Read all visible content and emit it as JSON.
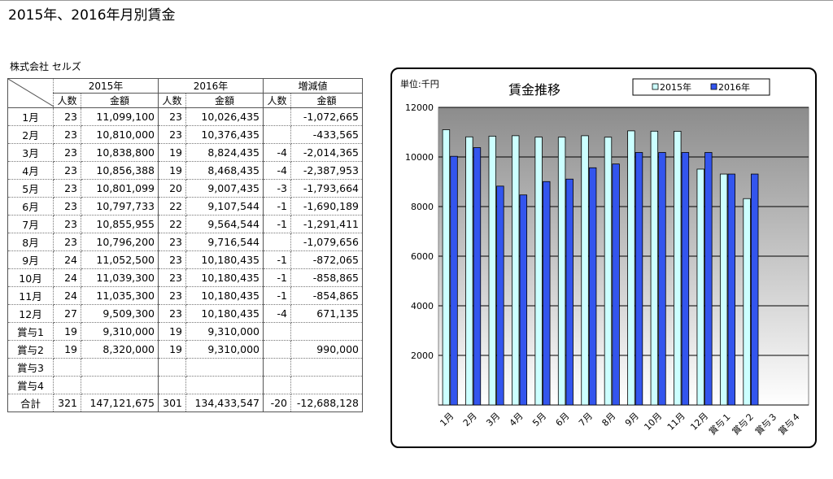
{
  "page_title": "2015年、2016年月別賃金",
  "company": "株式会社 セルズ",
  "table": {
    "group_headers": [
      "2015年",
      "2016年",
      "増減値"
    ],
    "sub_headers": [
      "人数",
      "金額",
      "人数",
      "金額",
      "人数",
      "金額"
    ],
    "rows": [
      {
        "month": "1月",
        "n15": "23",
        "a15": "11,099,100",
        "n16": "23",
        "a16": "10,026,435",
        "dn": "",
        "da": "-1,072,665"
      },
      {
        "month": "2月",
        "n15": "23",
        "a15": "10,810,000",
        "n16": "23",
        "a16": "10,376,435",
        "dn": "",
        "da": "-433,565"
      },
      {
        "month": "3月",
        "n15": "23",
        "a15": "10,838,800",
        "n16": "19",
        "a16": "8,824,435",
        "dn": "-4",
        "da": "-2,014,365"
      },
      {
        "month": "4月",
        "n15": "23",
        "a15": "10,856,388",
        "n16": "19",
        "a16": "8,468,435",
        "dn": "-4",
        "da": "-2,387,953"
      },
      {
        "month": "5月",
        "n15": "23",
        "a15": "10,801,099",
        "n16": "20",
        "a16": "9,007,435",
        "dn": "-3",
        "da": "-1,793,664"
      },
      {
        "month": "6月",
        "n15": "23",
        "a15": "10,797,733",
        "n16": "22",
        "a16": "9,107,544",
        "dn": "-1",
        "da": "-1,690,189"
      },
      {
        "month": "7月",
        "n15": "23",
        "a15": "10,855,955",
        "n16": "22",
        "a16": "9,564,544",
        "dn": "-1",
        "da": "-1,291,411"
      },
      {
        "month": "8月",
        "n15": "23",
        "a15": "10,796,200",
        "n16": "23",
        "a16": "9,716,544",
        "dn": "",
        "da": "-1,079,656"
      },
      {
        "month": "9月",
        "n15": "24",
        "a15": "11,052,500",
        "n16": "23",
        "a16": "10,180,435",
        "dn": "-1",
        "da": "-872,065"
      },
      {
        "month": "10月",
        "n15": "24",
        "a15": "11,039,300",
        "n16": "23",
        "a16": "10,180,435",
        "dn": "-1",
        "da": "-858,865"
      },
      {
        "month": "11月",
        "n15": "24",
        "a15": "11,035,300",
        "n16": "23",
        "a16": "10,180,435",
        "dn": "-1",
        "da": "-854,865"
      },
      {
        "month": "12月",
        "n15": "27",
        "a15": "9,509,300",
        "n16": "23",
        "a16": "10,180,435",
        "dn": "-4",
        "da": "671,135"
      },
      {
        "month": "賞与1",
        "n15": "19",
        "a15": "9,310,000",
        "n16": "19",
        "a16": "9,310,000",
        "dn": "",
        "da": ""
      },
      {
        "month": "賞与2",
        "n15": "19",
        "a15": "8,320,000",
        "n16": "19",
        "a16": "9,310,000",
        "dn": "",
        "da": "990,000"
      },
      {
        "month": "賞与3",
        "n15": "",
        "a15": "",
        "n16": "",
        "a16": "",
        "dn": "",
        "da": ""
      },
      {
        "month": "賞与4",
        "n15": "",
        "a15": "",
        "n16": "",
        "a16": "",
        "dn": "",
        "da": ""
      }
    ],
    "total": {
      "month": "合計",
      "n15": "321",
      "a15": "147,121,675",
      "n16": "301",
      "a16": "134,433,547",
      "dn": "-20",
      "da": "-12,688,128"
    }
  },
  "colors": {
    "series_2015": "#ccffff",
    "series_2016": "#3355ee",
    "bar_outline": "#000000",
    "plot_top": "#8c8c8c",
    "plot_bottom": "#ffffff"
  },
  "chart_data": {
    "type": "bar",
    "title": "賃金推移",
    "unit_label": "単位:千円",
    "categories": [
      "1月",
      "2月",
      "3月",
      "4月",
      "5月",
      "6月",
      "7月",
      "8月",
      "9月",
      "10月",
      "11月",
      "12月",
      "賞与１",
      "賞与２",
      "賞与３",
      "賞与４"
    ],
    "series": [
      {
        "name": "2015年",
        "values": [
          11099.1,
          10810.0,
          10838.8,
          10856.388,
          10801.099,
          10797.733,
          10855.955,
          10796.2,
          11052.5,
          11039.3,
          11035.3,
          9509.3,
          9310.0,
          8320.0,
          null,
          null
        ]
      },
      {
        "name": "2016年",
        "values": [
          10026.435,
          10376.435,
          8824.435,
          8468.435,
          9007.435,
          9107.544,
          9564.544,
          9716.544,
          10180.435,
          10180.435,
          10180.435,
          10180.435,
          9310.0,
          9310.0,
          null,
          null
        ]
      }
    ],
    "ylim": [
      0,
      12000
    ],
    "yticks": [
      "2000",
      "4000",
      "6000",
      "8000",
      "10000",
      "12000"
    ],
    "grid": true,
    "legend_position": "top-right"
  }
}
